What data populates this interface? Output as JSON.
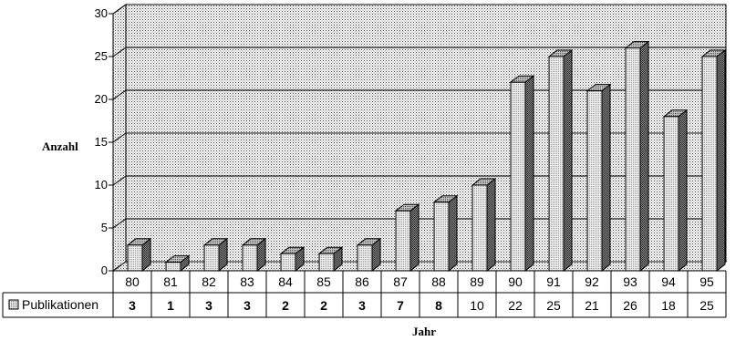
{
  "chart_data": {
    "type": "bar",
    "categories": [
      "80",
      "81",
      "82",
      "83",
      "84",
      "85",
      "86",
      "87",
      "88",
      "89",
      "90",
      "91",
      "92",
      "93",
      "94",
      "95"
    ],
    "series": [
      {
        "name": "Publikationen",
        "values": [
          3,
          1,
          3,
          3,
          2,
          2,
          3,
          7,
          8,
          10,
          22,
          25,
          21,
          26,
          18,
          25
        ]
      }
    ],
    "xlabel": "Jahr",
    "ylabel": "Anzahl",
    "ylim": [
      0,
      30
    ],
    "yticks": [
      0,
      5,
      10,
      15,
      20,
      25,
      30
    ],
    "grid": true,
    "data_table": true,
    "bold_table_values": [
      "80",
      "81",
      "82",
      "83",
      "84",
      "85",
      "86",
      "87",
      "88"
    ]
  }
}
